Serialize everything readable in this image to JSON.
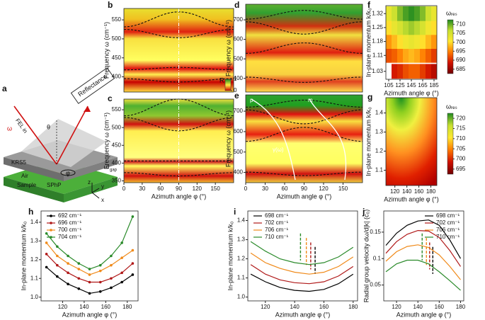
{
  "panel_labels": [
    "a",
    "b",
    "c",
    "d",
    "e",
    "f",
    "g",
    "h",
    "i",
    "j"
  ],
  "schematic": {
    "reflectance": "Reflectance",
    "fel": "FEL in",
    "omega": "ω",
    "theta": "θ",
    "d": "d",
    "gap": "gap",
    "krs5": "KRS5",
    "air": "Air",
    "sample": "Sample",
    "sphp": "SPhP",
    "phi": "φ",
    "z": "z",
    "y": "y",
    "x": "x"
  },
  "chart_data": [
    {
      "type": "heatmap",
      "xlim": [
        0,
        180
      ],
      "ylim": [
        360,
        580
      ],
      "yticks": [
        400,
        450,
        500,
        550
      ],
      "ylabel": "Frequency ω (cm⁻¹)",
      "colorbar": {
        "label": "R",
        "ticks": [
          0,
          1
        ]
      }
    },
    {
      "type": "heatmap",
      "xlim": [
        0,
        180
      ],
      "ylim": [
        345,
        580
      ],
      "xticks": [
        0,
        30,
        60,
        90,
        120,
        150
      ],
      "yticks": [
        350,
        400,
        450,
        500,
        550
      ],
      "xlabel": "Azimuth angle φ (°)",
      "ylabel": "Frequency ω (cm⁻¹)"
    },
    {
      "type": "heatmap",
      "xlim": [
        0,
        180
      ],
      "ylim": [
        330,
        780
      ],
      "yticks": [
        400,
        500,
        600,
        700
      ],
      "ylabel": "Frequency ω (cm⁻¹)"
    },
    {
      "type": "heatmap",
      "xlim": [
        0,
        180
      ],
      "ylim": [
        350,
        780
      ],
      "xticks": [
        0,
        30,
        60,
        90,
        120,
        150
      ],
      "yticks": [
        400,
        500,
        600,
        700
      ],
      "xlabel": "Azimuth angle φ (°)",
      "ylabel": "Frequency ω (cm⁻¹)",
      "annotations": [
        "p",
        "m",
        "γ(ω)"
      ]
    },
    {
      "type": "grid",
      "x": [
        105,
        115,
        125,
        135,
        145,
        155,
        165,
        175,
        185
      ],
      "y": [
        1.03,
        1.11,
        1.18,
        1.25,
        1.32
      ],
      "values": [
        [
          null,
          689,
          690,
          692,
          693,
          693,
          691,
          689,
          687
        ],
        [
          692,
          693,
          695,
          697,
          698,
          697,
          695,
          693,
          691
        ],
        [
          696,
          698,
          700,
          702,
          703,
          702,
          700,
          698,
          696
        ],
        [
          700,
          703,
          705,
          707,
          708,
          707,
          705,
          702,
          700
        ],
        [
          703,
          706,
          709,
          711,
          712,
          711,
          709,
          706,
          703
        ]
      ],
      "xlim": [
        100,
        190
      ],
      "ylim": [
        0.99,
        1.36
      ],
      "xticks": [
        105,
        125,
        145,
        165,
        185
      ],
      "yticks": [
        1.03,
        1.11,
        1.18,
        1.25,
        1.32
      ],
      "xlabel": "Azimuth angle φ (°)",
      "ylabel": "In-plane momentum k/k₀",
      "colorscale": [
        "#700000",
        "#d01000",
        "#ff7a00",
        "#ffe830",
        "#c8e030",
        "#208a20"
      ],
      "colorbar": {
        "label": "ωᵣₑₛ",
        "lim": [
          682.5,
          712.5
        ],
        "ticks": [
          685,
          690,
          695,
          700,
          705,
          710
        ]
      }
    },
    {
      "type": "heatmap",
      "xlim": [
        105,
        190
      ],
      "ylim": [
        1.02,
        1.48
      ],
      "xticks": [
        120,
        140,
        160,
        180
      ],
      "yticks": [
        1.1,
        1.2,
        1.3,
        1.4
      ],
      "xlabel": "Azimuth angle φ (°)",
      "ylabel": "In-plane momentum k/k₀",
      "colorscale": [
        "#700000",
        "#d01000",
        "#ff7a00",
        "#ffe830",
        "#c8e030",
        "#208a20"
      ],
      "colorbar": {
        "label": "ωᵣₑₛ",
        "lim": [
          692.5,
          722.5
        ],
        "ticks": [
          695,
          700,
          705,
          710,
          715,
          720
        ]
      }
    },
    {
      "type": "line",
      "markers": true,
      "legend": "upper left",
      "x": [
        105,
        115,
        125,
        135,
        145,
        155,
        165,
        175,
        185
      ],
      "series": [
        {
          "name": "692 cm⁻¹",
          "color": "#000000",
          "values": [
            1.16,
            1.11,
            1.07,
            1.045,
            1.02,
            1.03,
            1.05,
            1.08,
            1.12
          ]
        },
        {
          "name": "696 cm⁻¹",
          "color": "#b01818",
          "values": [
            1.23,
            1.17,
            1.13,
            1.1,
            1.08,
            1.08,
            1.1,
            1.13,
            1.18
          ]
        },
        {
          "name": "700 cm⁻¹",
          "color": "#f08a1a",
          "values": [
            1.29,
            1.22,
            1.18,
            1.15,
            1.12,
            1.14,
            1.17,
            1.21,
            1.25
          ]
        },
        {
          "name": "704 cm⁻¹",
          "color": "#2a8a2a",
          "values": [
            1.34,
            1.27,
            1.22,
            1.18,
            1.15,
            1.17,
            1.22,
            1.29,
            1.43
          ]
        }
      ],
      "xlim": [
        100,
        190
      ],
      "ylim": [
        0.98,
        1.46
      ],
      "xticks": [
        120,
        140,
        160,
        180
      ],
      "yticks": [
        {
          "value": 1,
          "label": "1.0"
        },
        1.1,
        1.2,
        1.3,
        1.4
      ],
      "xlabel": "Azimuth angle φ (°)",
      "ylabel": "In-plane momentum k/k₀"
    },
    {
      "type": "line",
      "legend": "upper left",
      "x": [
        110,
        120,
        130,
        140,
        150,
        160,
        170,
        180
      ],
      "series": [
        {
          "name": "698 cm⁻¹",
          "color": "#000000",
          "values": [
            1.12,
            1.08,
            1.05,
            1.035,
            1.03,
            1.04,
            1.07,
            1.12
          ],
          "min_angle": 154
        },
        {
          "name": "702 cm⁻¹",
          "color": "#b01818",
          "values": [
            1.17,
            1.12,
            1.09,
            1.075,
            1.07,
            1.08,
            1.11,
            1.16
          ],
          "min_angle": 151
        },
        {
          "name": "706 cm⁻¹",
          "color": "#f08a1a",
          "values": [
            1.23,
            1.18,
            1.15,
            1.13,
            1.12,
            1.13,
            1.16,
            1.21
          ],
          "min_angle": 148
        },
        {
          "name": "710 cm⁻¹",
          "color": "#2a8a2a",
          "values": [
            1.29,
            1.24,
            1.2,
            1.18,
            1.17,
            1.18,
            1.21,
            1.26
          ],
          "min_angle": 144
        }
      ],
      "xlim": [
        108,
        183
      ],
      "ylim": [
        0.98,
        1.45
      ],
      "xticks": [
        120,
        140,
        160,
        180
      ],
      "yticks": [
        {
          "value": 1,
          "label": "1.0"
        },
        1.1,
        1.2,
        1.3,
        1.4
      ],
      "xlabel": "Azimuth angle φ (°)",
      "ylabel": "In-plane momentum k/k₀"
    },
    {
      "type": "line",
      "legend": "upper right",
      "x": [
        110,
        120,
        130,
        140,
        150,
        160,
        170,
        180
      ],
      "series": [
        {
          "name": "698 cm⁻¹",
          "color": "#000000",
          "values": [
            0.125,
            0.148,
            0.163,
            0.171,
            0.173,
            0.163,
            0.135,
            0.1
          ],
          "min_angle": 154
        },
        {
          "name": "702 cm⁻¹",
          "color": "#b01818",
          "values": [
            0.11,
            0.132,
            0.146,
            0.153,
            0.152,
            0.14,
            0.115,
            0.085
          ],
          "min_angle": 151
        },
        {
          "name": "706 cm⁻¹",
          "color": "#f08a1a",
          "values": [
            0.095,
            0.113,
            0.123,
            0.126,
            0.121,
            0.107,
            0.085,
            0.06
          ],
          "min_angle": 148
        },
        {
          "name": "710 cm⁻¹",
          "color": "#2a8a2a",
          "values": [
            0.075,
            0.09,
            0.097,
            0.097,
            0.09,
            0.075,
            0.058,
            0.04
          ],
          "min_angle": 144
        }
      ],
      "xlim": [
        108,
        183
      ],
      "ylim": [
        0.02,
        0.19
      ],
      "xticks": [
        120,
        140,
        160,
        180
      ],
      "yticks": [
        0.05,
        0.1,
        0.15
      ],
      "xlabel": "Azimuth angle φ (°)",
      "ylabel": "Radial group velocity dω/d|k| (c₀)"
    }
  ]
}
